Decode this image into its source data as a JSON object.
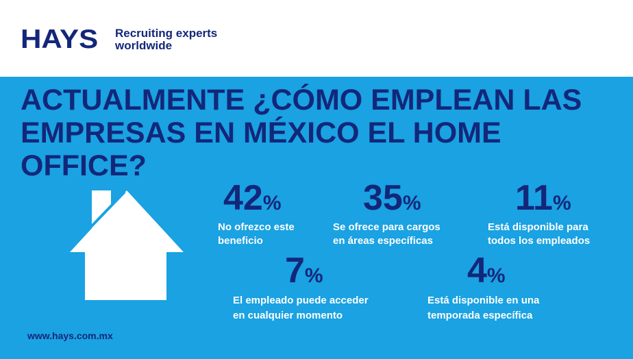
{
  "brand": {
    "logo": "HAYS",
    "tagline": "Recruiting experts worldwide"
  },
  "title": "ACTUALMENTE ¿CÓMO EMPLEAN LAS EMPRESAS EN MÉXICO EL HOME OFFICE?",
  "stats": [
    {
      "value": "42",
      "unit": "%",
      "label": "No ofrezco este beneficio"
    },
    {
      "value": "35",
      "unit": "%",
      "label": "Se ofrece para cargos en áreas específicas"
    },
    {
      "value": "11",
      "unit": "%",
      "label": "Está disponible para todos los empleados"
    },
    {
      "value": "7",
      "unit": "%",
      "label": "El empleado puede acceder en cualquier momento"
    },
    {
      "value": "4",
      "unit": "%",
      "label": "Está disponible en una temporada específica"
    }
  ],
  "footer": {
    "url": "www.hays.com.mx"
  },
  "icons": {
    "house": "house-icon"
  },
  "colors": {
    "brand_navy": "#13277a",
    "background_blue": "#1aa2e2",
    "white": "#ffffff"
  }
}
